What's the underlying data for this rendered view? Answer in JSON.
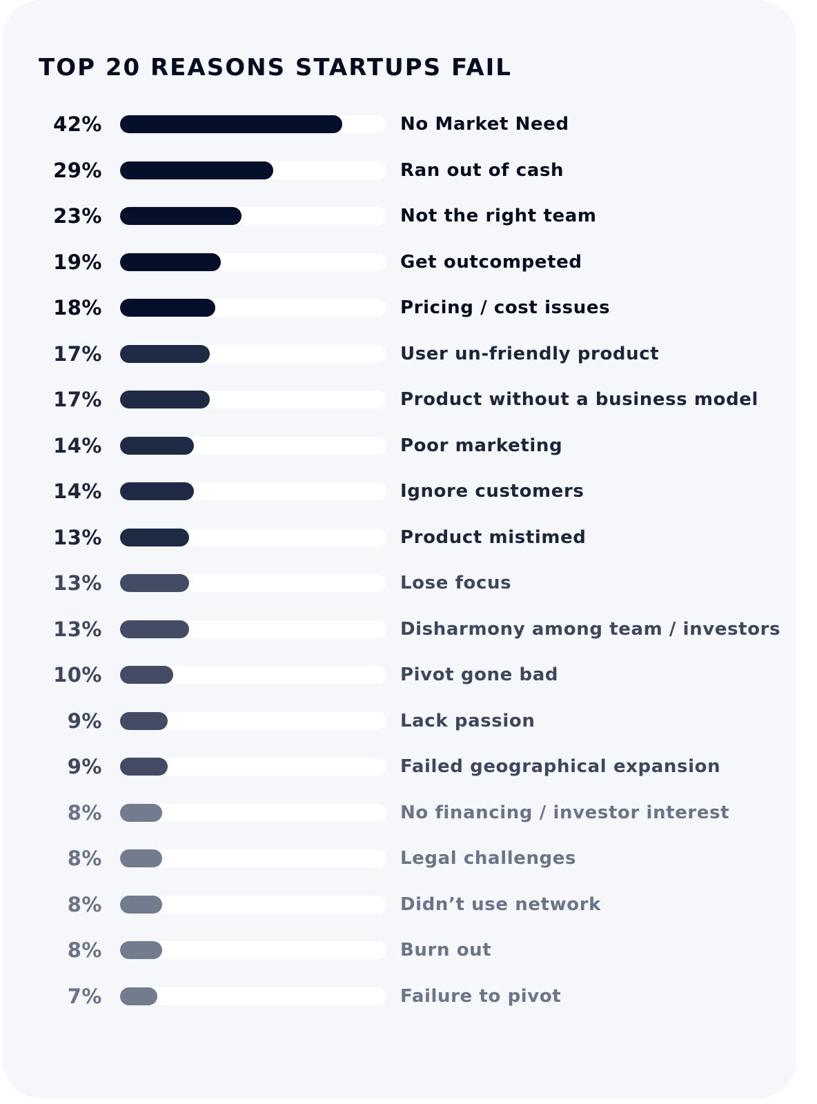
{
  "chart_data": {
    "type": "bar",
    "orientation": "horizontal",
    "title": "TOP 20 REASONS STARTUPS FAIL",
    "value_suffix": "%",
    "xlim": [
      0,
      50
    ],
    "categories": [
      "No Market Need",
      "Ran out of cash",
      "Not the right team",
      "Get outcompeted",
      "Pricing / cost issues",
      "User un-friendly product",
      "Product without a business model",
      "Poor marketing",
      "Ignore customers",
      "Product mistimed",
      "Lose focus",
      "Disharmony among team / investors",
      "Pivot gone bad",
      "Lack passion",
      "Failed geographical expansion",
      "No financing / investor interest",
      "Legal challenges",
      "Didn’t use network",
      "Burn out",
      "Failure to pivot"
    ],
    "values": [
      42,
      29,
      23,
      19,
      18,
      17,
      17,
      14,
      14,
      13,
      13,
      13,
      10,
      9,
      9,
      8,
      8,
      8,
      8,
      7
    ],
    "color_groups": [
      {
        "bar": "#060f2a",
        "text": "#060d1f"
      },
      {
        "bar": "#1f2a44",
        "text": "#1c2638"
      },
      {
        "bar": "#434c64",
        "text": "#3e475c"
      },
      {
        "bar": "#737b8f",
        "text": "#6c7487"
      }
    ],
    "row_color_group": [
      0,
      0,
      0,
      0,
      0,
      1,
      1,
      1,
      1,
      1,
      2,
      2,
      2,
      2,
      2,
      3,
      3,
      3,
      3,
      3
    ]
  }
}
